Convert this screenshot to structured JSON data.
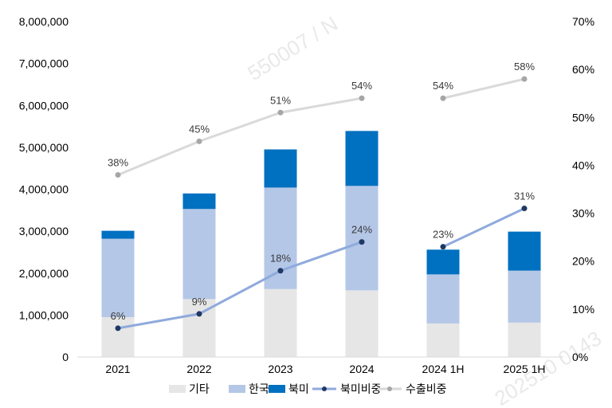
{
  "watermarks": [
    "550007 / N",
    "202510 0143"
  ],
  "chart_data": {
    "type": "bar",
    "stacked": true,
    "categories": [
      "2021",
      "2022",
      "2023",
      "2024",
      "2024 1H",
      "2025 1H"
    ],
    "series": [
      {
        "name": "기타",
        "kind": "bar",
        "color": "#e6e6e6",
        "values": [
          950000,
          1380000,
          1620000,
          1590000,
          800000,
          820000
        ]
      },
      {
        "name": "한국",
        "kind": "bar",
        "color": "#b4c7e7",
        "values": [
          1870000,
          2150000,
          2420000,
          2490000,
          1170000,
          1240000
        ]
      },
      {
        "name": "북미",
        "kind": "bar",
        "color": "#0070c0",
        "values": [
          190000,
          370000,
          910000,
          1310000,
          590000,
          930000
        ]
      },
      {
        "name": "북미비중",
        "kind": "line",
        "axis": "right",
        "color": "#8faadc",
        "marker_color": "#1f3864",
        "values": [
          6,
          9,
          18,
          24,
          23,
          31
        ],
        "labels": [
          "6%",
          "9%",
          "18%",
          "24%",
          "23%",
          "31%"
        ]
      },
      {
        "name": "수출비중",
        "kind": "line",
        "axis": "right",
        "color": "#d9d9d9",
        "marker_color": "#a6a6a6",
        "values": [
          38,
          45,
          51,
          54,
          54,
          58
        ],
        "labels": [
          "38%",
          "45%",
          "51%",
          "54%",
          "54%",
          "58%"
        ]
      }
    ],
    "line_breaks_after_index": 3,
    "left_axis": {
      "min": 0,
      "max": 8000000,
      "step": 1000000,
      "ticks": [
        "0",
        "1,000,000",
        "2,000,000",
        "3,000,000",
        "4,000,000",
        "5,000,000",
        "6,000,000",
        "7,000,000",
        "8,000,000"
      ]
    },
    "right_axis": {
      "min": 0,
      "max": 70,
      "step": 10,
      "ticks": [
        "0%",
        "10%",
        "20%",
        "30%",
        "40%",
        "50%",
        "60%",
        "70%"
      ]
    },
    "legend": {
      "position": "bottom",
      "items": [
        {
          "label": "기타",
          "type": "box",
          "color": "#e6e6e6"
        },
        {
          "label": "한국",
          "type": "box",
          "color": "#b4c7e7"
        },
        {
          "label": "북미",
          "type": "box",
          "color": "#0070c0"
        },
        {
          "label": "북미비중",
          "type": "line",
          "color": "#8faadc",
          "marker_color": "#1f3864"
        },
        {
          "label": "수출비중",
          "type": "line",
          "color": "#d9d9d9",
          "marker_color": "#a6a6a6"
        }
      ]
    }
  }
}
